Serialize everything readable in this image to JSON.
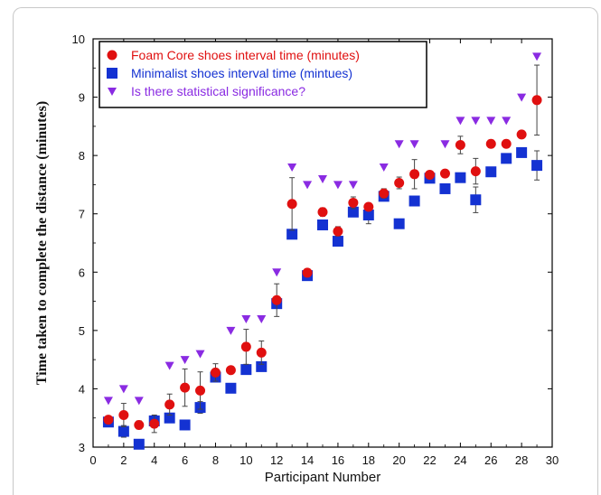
{
  "chart_data": {
    "type": "scatter",
    "xlabel": "Participant Number",
    "ylabel": "Time taken to complete the distance (minutes)",
    "xlim": [
      0,
      30
    ],
    "ylim": [
      3,
      10
    ],
    "xticks": [
      0,
      2,
      4,
      6,
      8,
      10,
      12,
      14,
      16,
      18,
      20,
      22,
      24,
      26,
      28,
      30
    ],
    "yticks": [
      3,
      4,
      5,
      6,
      7,
      8,
      9,
      10
    ],
    "grid": false,
    "legend_position": "top-left",
    "series": [
      {
        "name": "Foam Core shoes interval time (minutes)",
        "marker": "circle",
        "color": "#e01010",
        "points": [
          {
            "x": 1,
            "y": 3.47,
            "err": 0.05
          },
          {
            "x": 2,
            "y": 3.55,
            "err": 0.2
          },
          {
            "x": 3,
            "y": 3.38,
            "err": 0.07
          },
          {
            "x": 4,
            "y": 3.4,
            "err": 0.15
          },
          {
            "x": 5,
            "y": 3.73,
            "err": 0.18
          },
          {
            "x": 6,
            "y": 4.02,
            "err": 0.32
          },
          {
            "x": 7,
            "y": 3.97,
            "err": 0.32
          },
          {
            "x": 8,
            "y": 4.28,
            "err": 0.15
          },
          {
            "x": 9,
            "y": 4.32,
            "err": 0.05
          },
          {
            "x": 10,
            "y": 4.72,
            "err": 0.3
          },
          {
            "x": 11,
            "y": 4.62,
            "err": 0.2
          },
          {
            "x": 12,
            "y": 5.52,
            "err": 0.28
          },
          {
            "x": 13,
            "y": 7.17,
            "err": 0.45
          },
          {
            "x": 14,
            "y": 5.99,
            "err": 0.04
          },
          {
            "x": 15,
            "y": 7.03,
            "err": 0.07
          },
          {
            "x": 16,
            "y": 6.7,
            "err": 0.08
          },
          {
            "x": 17,
            "y": 7.19,
            "err": 0.1
          },
          {
            "x": 18,
            "y": 7.12,
            "err": 0.05
          },
          {
            "x": 19,
            "y": 7.35,
            "err": 0.08
          },
          {
            "x": 20,
            "y": 7.53,
            "err": 0.1
          },
          {
            "x": 21,
            "y": 7.68,
            "err": 0.25
          },
          {
            "x": 22,
            "y": 7.67,
            "err": 0.05
          },
          {
            "x": 23,
            "y": 7.69,
            "err": 0.06
          },
          {
            "x": 24,
            "y": 8.18,
            "err": 0.15
          },
          {
            "x": 25,
            "y": 7.73,
            "err": 0.22
          },
          {
            "x": 26,
            "y": 8.2,
            "err": 0.06
          },
          {
            "x": 27,
            "y": 8.2,
            "err": 0.06
          },
          {
            "x": 28,
            "y": 8.36,
            "err": 0.06
          },
          {
            "x": 29,
            "y": 8.95,
            "err": 0.6
          }
        ]
      },
      {
        "name": "Minimalist shoes interval time (mintues)",
        "marker": "square",
        "color": "#1432d2",
        "points": [
          {
            "x": 1,
            "y": 3.43,
            "err": 0.05
          },
          {
            "x": 2,
            "y": 3.27,
            "err": 0.1
          },
          {
            "x": 3,
            "y": 3.05,
            "err": 0.05
          },
          {
            "x": 4,
            "y": 3.45,
            "err": 0.08
          },
          {
            "x": 5,
            "y": 3.5,
            "err": 0.08
          },
          {
            "x": 6,
            "y": 3.38,
            "err": 0.08
          },
          {
            "x": 7,
            "y": 3.68,
            "err": 0.1
          },
          {
            "x": 8,
            "y": 4.2,
            "err": 0.05
          },
          {
            "x": 9,
            "y": 4.01,
            "err": 0.04
          },
          {
            "x": 10,
            "y": 4.33,
            "err": 0.08
          },
          {
            "x": 11,
            "y": 4.38,
            "err": 0.06
          },
          {
            "x": 12,
            "y": 5.46,
            "err": 0.07
          },
          {
            "x": 13,
            "y": 6.65,
            "err": 0.05
          },
          {
            "x": 14,
            "y": 5.94,
            "err": 0.04
          },
          {
            "x": 15,
            "y": 6.81,
            "err": 0.05
          },
          {
            "x": 16,
            "y": 6.53,
            "err": 0.05
          },
          {
            "x": 17,
            "y": 7.03,
            "err": 0.06
          },
          {
            "x": 18,
            "y": 6.98,
            "err": 0.15
          },
          {
            "x": 19,
            "y": 7.3,
            "err": 0.07
          },
          {
            "x": 20,
            "y": 6.83,
            "err": 0.05
          },
          {
            "x": 21,
            "y": 7.22,
            "err": 0.05
          },
          {
            "x": 22,
            "y": 7.61,
            "err": 0.05
          },
          {
            "x": 23,
            "y": 7.43,
            "err": 0.05
          },
          {
            "x": 24,
            "y": 7.62,
            "err": 0.06
          },
          {
            "x": 25,
            "y": 7.24,
            "err": 0.22
          },
          {
            "x": 26,
            "y": 7.72,
            "err": 0.05
          },
          {
            "x": 27,
            "y": 7.95,
            "err": 0.06
          },
          {
            "x": 28,
            "y": 8.05,
            "err": 0.06
          },
          {
            "x": 29,
            "y": 7.83,
            "err": 0.25
          }
        ]
      },
      {
        "name": "Is there statistical significance?",
        "marker": "triangle-down",
        "color": "#8a2be2",
        "points": [
          {
            "x": 1,
            "y": 3.8
          },
          {
            "x": 2,
            "y": 4.0
          },
          {
            "x": 3,
            "y": 3.8
          },
          {
            "x": 5,
            "y": 4.4
          },
          {
            "x": 6,
            "y": 4.5
          },
          {
            "x": 7,
            "y": 4.6
          },
          {
            "x": 9,
            "y": 5.0
          },
          {
            "x": 10,
            "y": 5.2
          },
          {
            "x": 11,
            "y": 5.2
          },
          {
            "x": 12,
            "y": 6.0
          },
          {
            "x": 13,
            "y": 7.8
          },
          {
            "x": 14,
            "y": 7.5
          },
          {
            "x": 15,
            "y": 7.6
          },
          {
            "x": 16,
            "y": 7.5
          },
          {
            "x": 17,
            "y": 7.5
          },
          {
            "x": 19,
            "y": 7.8
          },
          {
            "x": 20,
            "y": 8.2
          },
          {
            "x": 21,
            "y": 8.2
          },
          {
            "x": 23,
            "y": 8.2
          },
          {
            "x": 24,
            "y": 8.6
          },
          {
            "x": 25,
            "y": 8.6
          },
          {
            "x": 26,
            "y": 8.6
          },
          {
            "x": 27,
            "y": 8.6
          },
          {
            "x": 28,
            "y": 9.0
          },
          {
            "x": 29,
            "y": 9.7
          }
        ]
      }
    ]
  }
}
